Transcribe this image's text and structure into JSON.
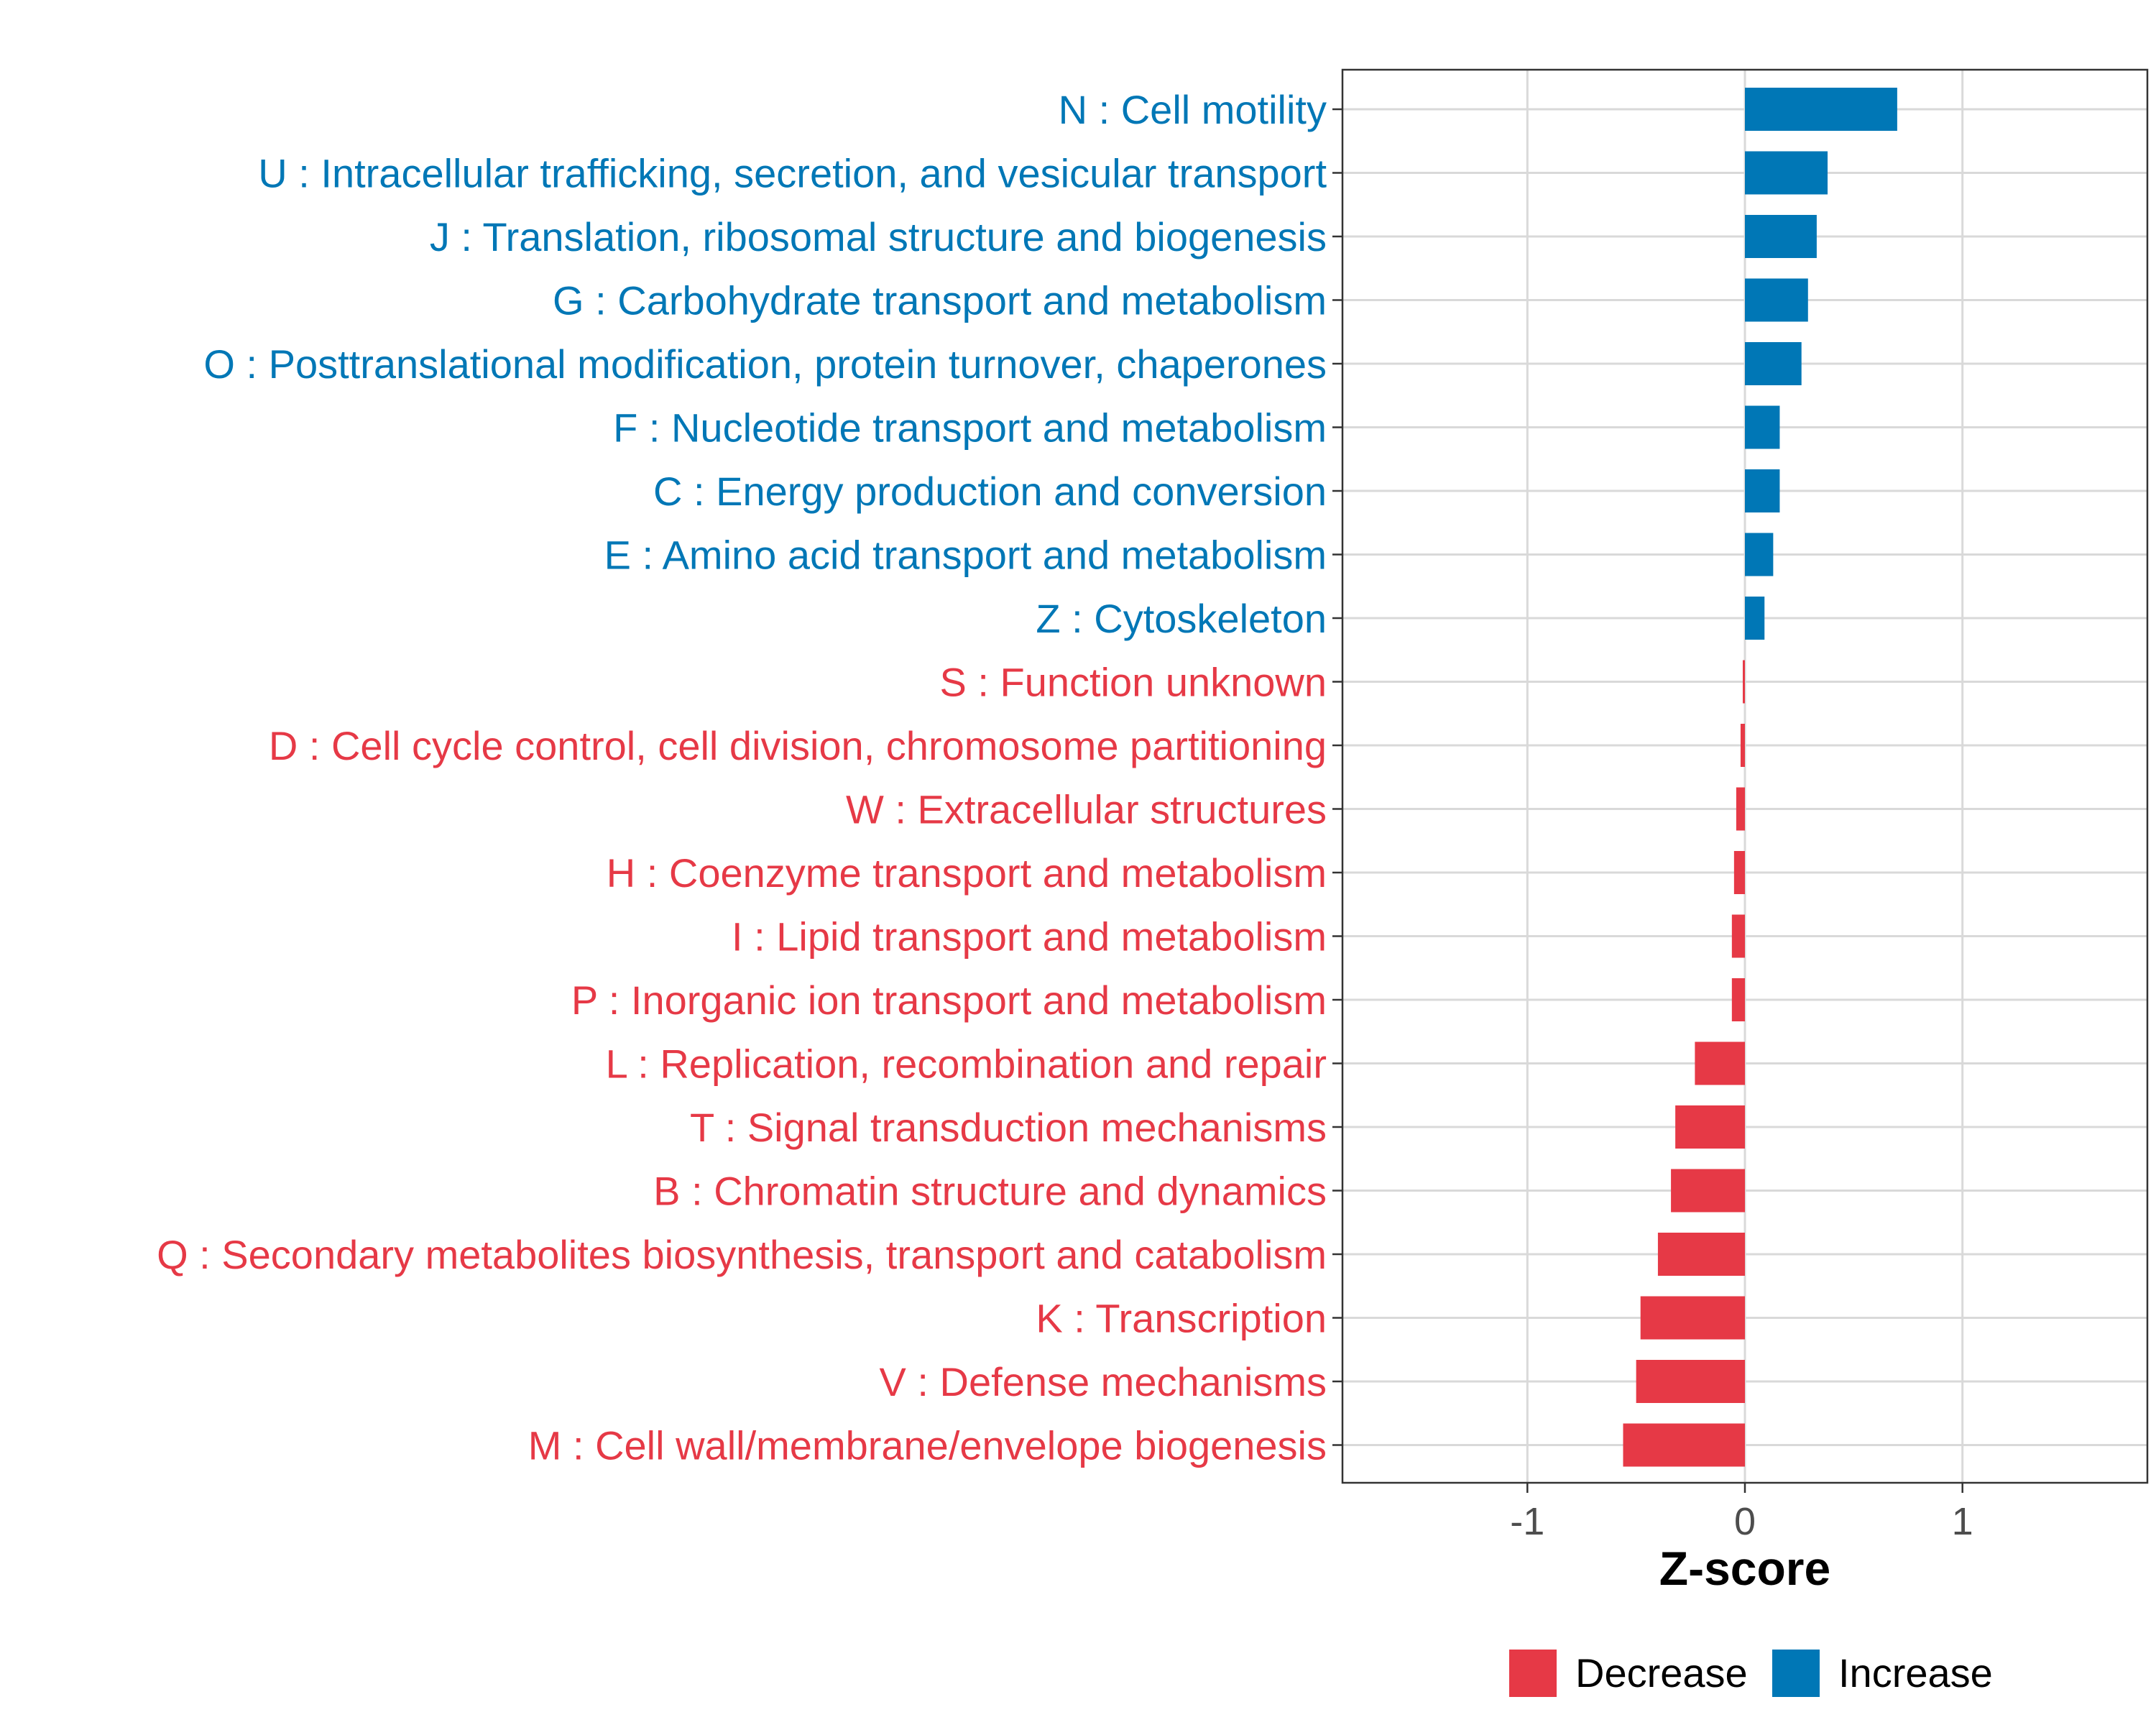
{
  "chart_data": {
    "type": "bar",
    "orientation": "horizontal",
    "title": "",
    "xlabel": "Z-score",
    "ylabel": "",
    "xlim": [
      -1.85,
      1.85
    ],
    "xticks": [
      -1,
      0,
      1
    ],
    "xtick_labels": [
      "-1",
      "0",
      "1"
    ],
    "grid": true,
    "colors": {
      "Decrease": "#e63946",
      "Increase": "#0077b6"
    },
    "categories": [
      "N : Cell motility",
      "U : Intracellular trafficking, secretion, and vesicular transport",
      "J : Translation, ribosomal structure and biogenesis",
      "G : Carbohydrate transport and metabolism",
      "O : Posttranslational modification, protein turnover, chaperones",
      "F : Nucleotide transport and metabolism",
      "C : Energy production and conversion",
      "E : Amino acid transport and metabolism",
      "Z : Cytoskeleton",
      "S : Function unknown",
      "D : Cell cycle control, cell division, chromosome partitioning",
      "W : Extracellular structures",
      "H : Coenzyme transport and metabolism",
      "I : Lipid transport and metabolism",
      "P : Inorganic ion transport and metabolism",
      "L : Replication, recombination and repair",
      "T : Signal transduction mechanisms",
      "B : Chromatin structure and dynamics",
      "Q : Secondary metabolites biosynthesis, transport and catabolism",
      "K : Transcription",
      "V : Defense mechanisms",
      "M : Cell wall/membrane/envelope biogenesis"
    ],
    "values": [
      0.7,
      0.38,
      0.33,
      0.29,
      0.26,
      0.16,
      0.16,
      0.13,
      0.09,
      -0.01,
      -0.02,
      -0.04,
      -0.05,
      -0.06,
      -0.06,
      -0.23,
      -0.32,
      -0.34,
      -0.4,
      -0.48,
      -0.5,
      -0.56
    ],
    "groups": [
      "Increase",
      "Increase",
      "Increase",
      "Increase",
      "Increase",
      "Increase",
      "Increase",
      "Increase",
      "Increase",
      "Decrease",
      "Decrease",
      "Decrease",
      "Decrease",
      "Decrease",
      "Decrease",
      "Decrease",
      "Decrease",
      "Decrease",
      "Decrease",
      "Decrease",
      "Decrease",
      "Decrease"
    ],
    "legend": {
      "entries": [
        "Decrease",
        "Increase"
      ],
      "position": "bottom"
    }
  }
}
